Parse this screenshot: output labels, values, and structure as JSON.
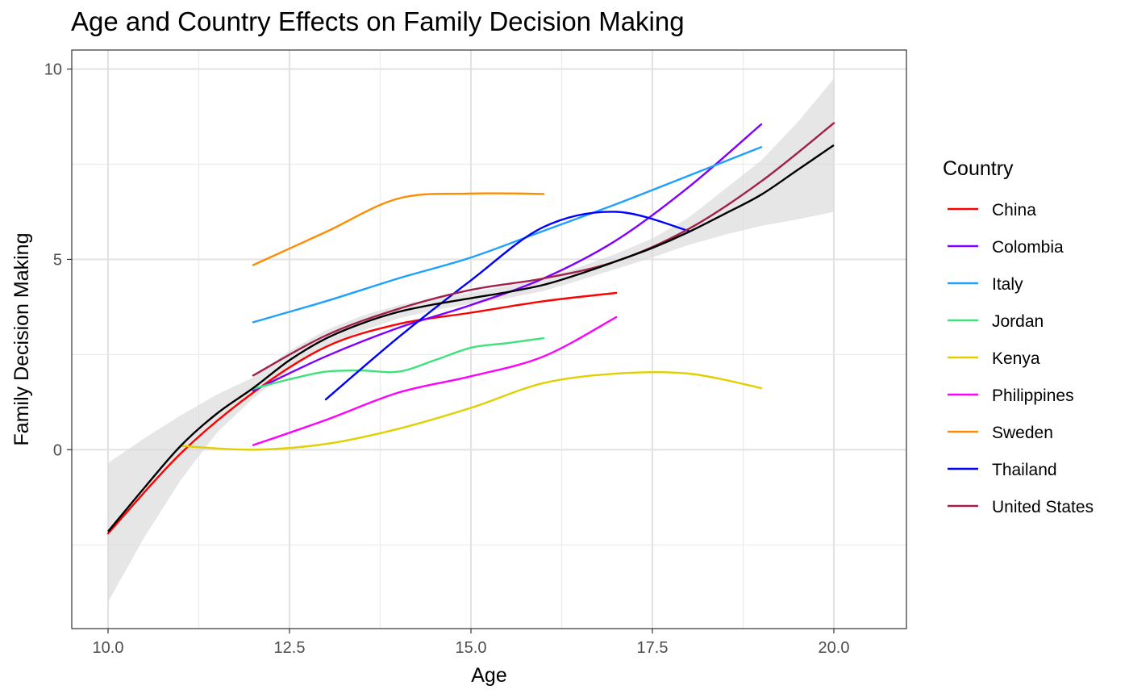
{
  "chart_data": {
    "type": "line",
    "title": "Age and Country Effects on Family Decision Making",
    "xlabel": "Age",
    "ylabel": "Family Decision Making",
    "xlim": [
      9.5,
      21.0
    ],
    "ylim": [
      -4.7,
      10.5
    ],
    "x_ticks": [
      10.0,
      12.5,
      15.0,
      17.5,
      20.0
    ],
    "x_tick_labels": [
      "10.0",
      "12.5",
      "15.0",
      "17.5",
      "20.0"
    ],
    "y_ticks": [
      0,
      5,
      10
    ],
    "y_tick_labels": [
      "0",
      "5",
      "10"
    ],
    "grid": true,
    "legend": {
      "title": "Country",
      "position": "right"
    },
    "series": [
      {
        "name": "China",
        "color": "#ff0000",
        "x": [
          10,
          11,
          12,
          13,
          14,
          15,
          16,
          17
        ],
        "y": [
          -2.2,
          -0.1,
          1.5,
          2.7,
          3.3,
          3.6,
          3.9,
          4.12
        ]
      },
      {
        "name": "Colombia",
        "color": "#8000ff",
        "x": [
          12,
          13,
          14,
          15,
          16,
          17,
          18,
          19
        ],
        "y": [
          1.55,
          2.45,
          3.2,
          3.8,
          4.5,
          5.5,
          6.9,
          8.55
        ]
      },
      {
        "name": "Italy",
        "color": "#1ea0ff",
        "x": [
          12,
          13,
          14,
          15,
          16,
          17,
          18,
          19
        ],
        "y": [
          3.35,
          3.9,
          4.5,
          5.05,
          5.75,
          6.45,
          7.2,
          7.95
        ]
      },
      {
        "name": "Jordan",
        "color": "#3de27a",
        "x": [
          12,
          12.5,
          13,
          13.5,
          14,
          14.5,
          15,
          15.5,
          16
        ],
        "y": [
          1.6,
          1.85,
          2.05,
          2.08,
          2.05,
          2.35,
          2.68,
          2.8,
          2.93
        ]
      },
      {
        "name": "Kenya",
        "color": "#e0d000",
        "x": [
          11,
          12,
          13,
          14,
          15,
          16,
          17,
          18,
          19
        ],
        "y": [
          0.1,
          0.0,
          0.15,
          0.55,
          1.1,
          1.75,
          2.0,
          2.0,
          1.62
        ]
      },
      {
        "name": "Philippines",
        "color": "#ff00ff",
        "x": [
          12,
          13,
          14,
          15,
          16,
          17
        ],
        "y": [
          0.12,
          0.78,
          1.5,
          1.93,
          2.45,
          3.48
        ]
      },
      {
        "name": "Sweden",
        "color": "#ff8c00",
        "x": [
          12,
          13,
          14,
          15,
          16
        ],
        "y": [
          4.85,
          5.72,
          6.6,
          6.73,
          6.72
        ]
      },
      {
        "name": "Thailand",
        "color": "#0000ff",
        "x": [
          13,
          14,
          15,
          16,
          17,
          18
        ],
        "y": [
          1.32,
          2.95,
          4.45,
          5.85,
          6.25,
          5.75
        ]
      },
      {
        "name": "United States",
        "color": "#a0204a",
        "x": [
          12,
          13,
          14,
          15,
          16,
          17,
          18,
          19,
          20
        ],
        "y": [
          1.95,
          3.0,
          3.7,
          4.2,
          4.5,
          4.95,
          5.8,
          7.05,
          8.58
        ]
      }
    ],
    "overall_fit": {
      "color": "#000000",
      "ribbon_color": "#d9d9d9",
      "x": [
        10,
        10.5,
        11,
        11.5,
        12,
        12.5,
        13,
        13.5,
        14,
        14.5,
        15,
        15.5,
        16,
        16.5,
        17,
        17.5,
        18,
        18.5,
        19,
        19.5,
        20
      ],
      "y": [
        -2.15,
        -1.0,
        0.1,
        0.95,
        1.62,
        2.35,
        2.92,
        3.32,
        3.62,
        3.82,
        3.98,
        4.14,
        4.33,
        4.62,
        4.95,
        5.3,
        5.72,
        6.2,
        6.7,
        7.35,
        8.0
      ],
      "lower": [
        -4.0,
        -2.3,
        -0.8,
        0.45,
        1.35,
        2.1,
        2.7,
        3.12,
        3.45,
        3.67,
        3.83,
        3.98,
        4.17,
        4.45,
        4.75,
        5.05,
        5.38,
        5.65,
        5.88,
        6.05,
        6.25
      ],
      "upper": [
        -0.35,
        0.3,
        0.9,
        1.45,
        1.9,
        2.6,
        3.14,
        3.52,
        3.8,
        3.97,
        4.13,
        4.3,
        4.5,
        4.8,
        5.15,
        5.55,
        6.1,
        6.85,
        7.6,
        8.6,
        9.75
      ]
    }
  }
}
